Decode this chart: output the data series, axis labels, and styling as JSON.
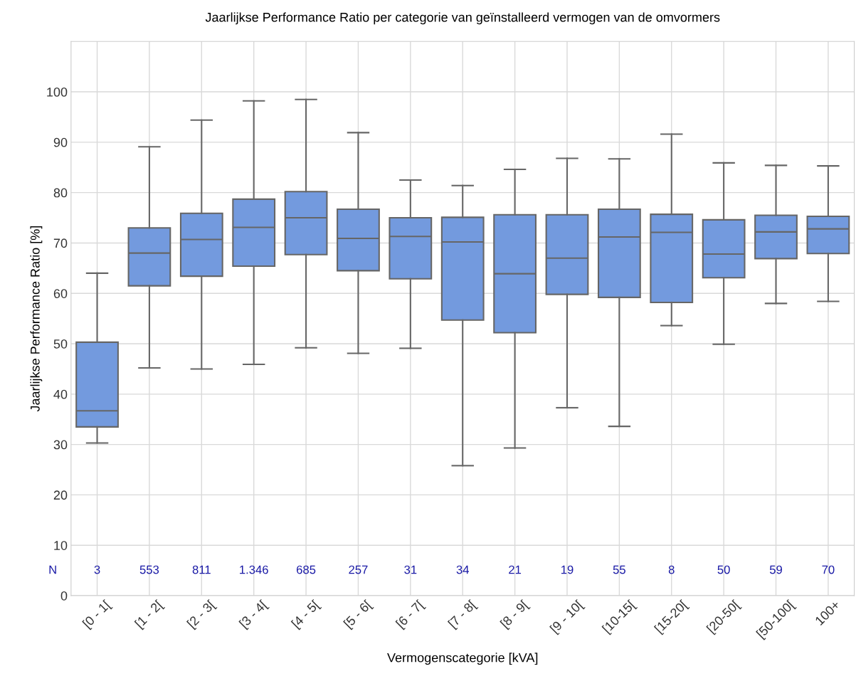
{
  "chart_data": {
    "type": "box",
    "title": "Jaarlijkse Performance Ratio per categorie van geïnstalleerd vermogen van de omvormers",
    "xlabel": "Vermogenscategorie [kVA]",
    "ylabel": "Jaarlijkse Performance Ratio [%]",
    "categories": [
      "[0 - 1[",
      "[1 - 2[",
      "[2 - 3[",
      "[3 - 4[",
      "[4 - 5[",
      "[5 - 6[",
      "[6 - 7[",
      "[7 - 8[",
      "[8 - 9[",
      "[9 - 10[",
      "[10-15[",
      "[15-20[",
      "[20-50[",
      "[50-100[",
      "100+"
    ],
    "color": "#739ade",
    "boxes": [
      {
        "low": 30.3,
        "q1": 33.5,
        "median": 36.7,
        "q3": 50.3,
        "high": 64
      },
      {
        "low": 45.2,
        "q1": 61.5,
        "median": 68,
        "q3": 73,
        "high": 89.1
      },
      {
        "low": 45,
        "q1": 63.4,
        "median": 70.7,
        "q3": 75.9,
        "high": 94.4
      },
      {
        "low": 45.9,
        "q1": 65.4,
        "median": 73.1,
        "q3": 78.7,
        "high": 98.2
      },
      {
        "low": 49.2,
        "q1": 67.7,
        "median": 75,
        "q3": 80.2,
        "high": 98.5
      },
      {
        "low": 48.1,
        "q1": 64.5,
        "median": 70.9,
        "q3": 76.7,
        "high": 91.9
      },
      {
        "low": 49.1,
        "q1": 62.9,
        "median": 71.3,
        "q3": 75,
        "high": 82.5
      },
      {
        "low": 25.8,
        "q1": 54.7,
        "median": 70.2,
        "q3": 75.1,
        "high": 81.4
      },
      {
        "low": 29.3,
        "q1": 52.2,
        "median": 63.9,
        "q3": 75.6,
        "high": 84.6
      },
      {
        "low": 37.3,
        "q1": 59.8,
        "median": 67,
        "q3": 75.6,
        "high": 86.8
      },
      {
        "low": 33.6,
        "q1": 59.2,
        "median": 71.2,
        "q3": 76.7,
        "high": 86.7
      },
      {
        "low": 53.6,
        "q1": 58.2,
        "median": 72.1,
        "q3": 75.7,
        "high": 91.6
      },
      {
        "low": 49.9,
        "q1": 63.1,
        "median": 67.8,
        "q3": 74.6,
        "high": 85.9
      },
      {
        "low": 58,
        "q1": 66.9,
        "median": 72.2,
        "q3": 75.5,
        "high": 85.4
      },
      {
        "low": 58.4,
        "q1": 67.9,
        "median": 72.8,
        "q3": 75.3,
        "high": 85.3
      }
    ],
    "ylim": [
      0,
      110
    ],
    "yticks": [
      0,
      10,
      20,
      30,
      40,
      50,
      60,
      70,
      80,
      90,
      100
    ],
    "grid": true,
    "annotations": [
      "N",
      "3",
      "553",
      "811",
      "1.346",
      "685",
      "257",
      "31",
      "34",
      "21",
      "19",
      "55",
      "8",
      "50",
      "59",
      "70"
    ]
  }
}
